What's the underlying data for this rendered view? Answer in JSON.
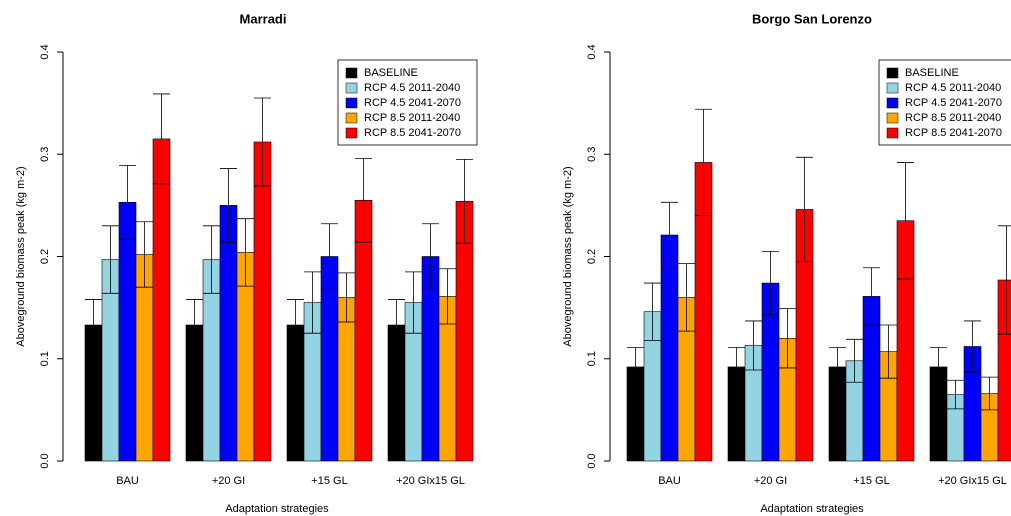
{
  "chart_data": [
    {
      "type": "bar",
      "title": "Marradi",
      "xlabel": "Adaptation strategies",
      "ylabel": "Aboveground biomass peak (kg m-2)",
      "categories": [
        "BAU",
        "+20 GI",
        "+15 GL",
        "+20 GIx15 GL"
      ],
      "ylim": [
        0,
        0.4
      ],
      "yticks": [
        {
          "value": 0,
          "label": "0.0"
        },
        0.1,
        0.2,
        0.3,
        0.4
      ],
      "legend": "top-right",
      "series": [
        {
          "name": "BASELINE",
          "color": "#000000",
          "values": [
            0.133,
            0.133,
            0.133,
            0.133
          ],
          "errors": [
            0.025,
            0.025,
            0.025,
            0.025
          ]
        },
        {
          "name": "RCP 4.5 2011-2040",
          "color": "#93d4e2",
          "values": [
            0.197,
            0.197,
            0.155,
            0.155
          ],
          "errors": [
            0.033,
            0.033,
            0.03,
            0.03
          ]
        },
        {
          "name": "RCP 4.5 2041-2070",
          "color": "#0000ff",
          "values": [
            0.253,
            0.25,
            0.2,
            0.2
          ],
          "errors": [
            0.036,
            0.036,
            0.032,
            0.032
          ]
        },
        {
          "name": "RCP 8.5 2011-2040",
          "color": "#ffa500",
          "values": [
            0.202,
            0.204,
            0.16,
            0.161
          ],
          "errors": [
            0.032,
            0.033,
            0.024,
            0.027
          ]
        },
        {
          "name": "RCP 8.5 2041-2070",
          "color": "#ff0000",
          "values": [
            0.315,
            0.312,
            0.255,
            0.254
          ],
          "errors": [
            0.044,
            0.043,
            0.041,
            0.041
          ]
        }
      ]
    },
    {
      "type": "bar",
      "title": "Borgo San Lorenzo",
      "xlabel": "Adaptation strategies",
      "ylabel": "Aboveground biomass peak (kg m-2)",
      "categories": [
        "BAU",
        "+20 GI",
        "+15 GL",
        "+20 GIx15 GL"
      ],
      "ylim": [
        0,
        0.4
      ],
      "yticks": [
        {
          "value": 0,
          "label": "0.0"
        },
        0.1,
        0.2,
        0.3,
        0.4
      ],
      "legend": "top-right",
      "series": [
        {
          "name": "BASELINE",
          "color": "#000000",
          "values": [
            0.092,
            0.092,
            0.092,
            0.092
          ],
          "errors": [
            0.019,
            0.019,
            0.019,
            0.019
          ]
        },
        {
          "name": "RCP 4.5 2011-2040",
          "color": "#93d4e2",
          "values": [
            0.146,
            0.113,
            0.098,
            0.065
          ],
          "errors": [
            0.028,
            0.024,
            0.021,
            0.014
          ]
        },
        {
          "name": "RCP 4.5 2041-2070",
          "color": "#0000ff",
          "values": [
            0.221,
            0.174,
            0.161,
            0.112
          ],
          "errors": [
            0.032,
            0.031,
            0.028,
            0.025
          ]
        },
        {
          "name": "RCP 8.5 2011-2040",
          "color": "#ffa500",
          "values": [
            0.16,
            0.12,
            0.107,
            0.066
          ],
          "errors": [
            0.033,
            0.029,
            0.026,
            0.016
          ]
        },
        {
          "name": "RCP 8.5 2041-2070",
          "color": "#ff0000",
          "values": [
            0.292,
            0.246,
            0.235,
            0.177
          ],
          "errors": [
            0.052,
            0.051,
            0.057,
            0.053
          ]
        }
      ]
    }
  ]
}
